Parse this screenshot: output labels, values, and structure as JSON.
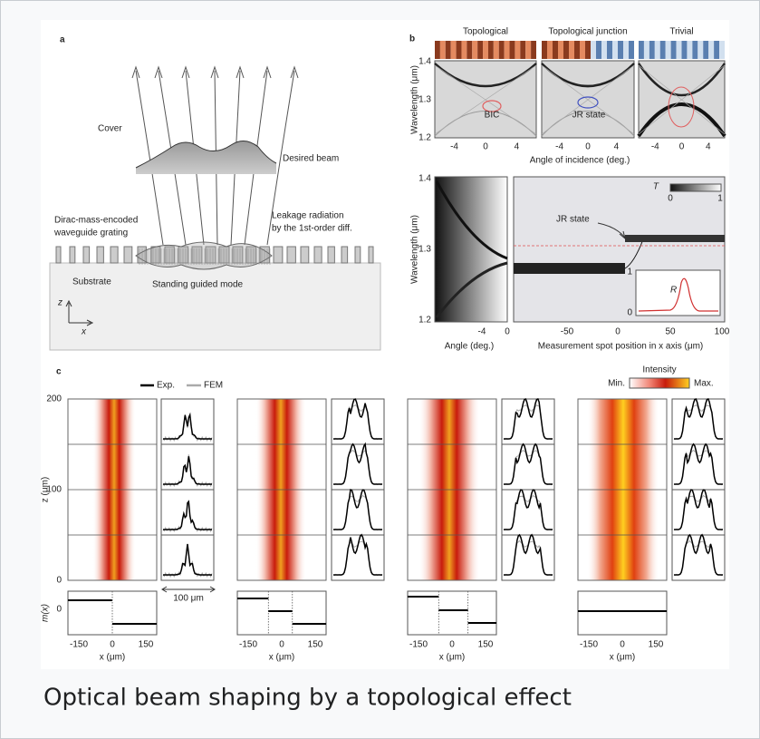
{
  "panel_a": {
    "label": "a",
    "cover": "Cover",
    "desired_beam": "Desired beam",
    "grating_label": [
      "Dirac-mass-encoded",
      "waveguide grating"
    ],
    "leakage_label": [
      "Leakage radiation",
      "by the 1st-order diff."
    ],
    "substrate": "Substrate",
    "guided_mode": "Standing guided mode",
    "axis_z": "z",
    "axis_x": "x"
  },
  "panel_b": {
    "label": "b",
    "top": {
      "titles": [
        "Topological",
        "Topological junction",
        "Trivial"
      ],
      "y_label": "Wavelength (μm)",
      "yticks": [
        "1.4",
        "1.3",
        "1.2"
      ],
      "xticks": [
        "-4",
        "0",
        "4"
      ],
      "x_label": "Angle of incidence (deg.)",
      "annotations": [
        "BIC",
        "JR state"
      ]
    },
    "bottom": {
      "y_label": "Wavelength (μm)",
      "yticks": [
        "1.4",
        "1.3",
        "1.2"
      ],
      "left_xticks": [
        "-4",
        "0"
      ],
      "left_x_label": "Angle (deg.)",
      "right_xticks": [
        "-50",
        "0",
        "50",
        "100"
      ],
      "right_x_label": "Measurement spot position in x axis (μm)",
      "colorbar_label": "T",
      "colorbar_ticks": [
        "0",
        "1"
      ],
      "annotation": "JR state",
      "inset_label": "R",
      "inset_yticks": [
        "1",
        "0"
      ]
    }
  },
  "panel_c": {
    "label": "c",
    "legend": [
      "Exp.",
      "FEM"
    ],
    "colorbar_title": "Intensity",
    "colorbar_ends": [
      "Min.",
      "Max."
    ],
    "y_label": "z (μm)",
    "yticks": [
      "200",
      "100",
      "0"
    ],
    "scale_bar": "100 μm",
    "mass_label": "m(x)",
    "mass_tick": "0",
    "xticks": [
      "-150",
      "0",
      "150"
    ],
    "x_label": "x (μm)"
  },
  "caption": "Optical beam shaping by a topological effect"
}
